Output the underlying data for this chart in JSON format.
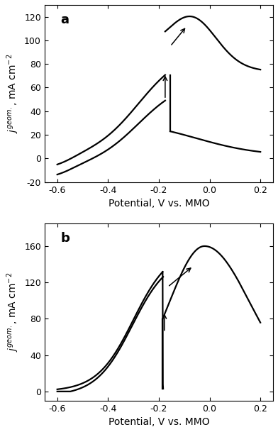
{
  "panel_a": {
    "label": "a",
    "xlim": [
      -0.65,
      0.25
    ],
    "ylim": [
      -20,
      130
    ],
    "yticks": [
      -20,
      0,
      20,
      40,
      60,
      80,
      100,
      120
    ],
    "ytick_labels": [
      "-20",
      "0",
      "20",
      "40",
      "60",
      "80",
      "100",
      "120"
    ],
    "xticks": [
      -0.6,
      -0.4,
      -0.2,
      0.0,
      0.2
    ],
    "xlabel": "Potential, V vs. MMO",
    "ylabel": "$j^{geom.}$, mA cm$^{-2}$"
  },
  "panel_b": {
    "label": "b",
    "xlim": [
      -0.65,
      0.25
    ],
    "ylim": [
      -10,
      185
    ],
    "yticks": [
      0,
      40,
      80,
      120,
      160
    ],
    "ytick_labels": [
      "0",
      "40",
      "80",
      "120",
      "160"
    ],
    "xticks": [
      -0.6,
      -0.4,
      -0.2,
      0.0,
      0.2
    ],
    "xlabel": "Potential, V vs. MMO",
    "ylabel": "$j^{geom.}$, mA cm$^{-2}$"
  },
  "line_color": "#000000",
  "line_width": 1.6,
  "background_color": "#ffffff",
  "label_fontsize": 10,
  "tick_fontsize": 9,
  "panel_label_fontsize": 13
}
